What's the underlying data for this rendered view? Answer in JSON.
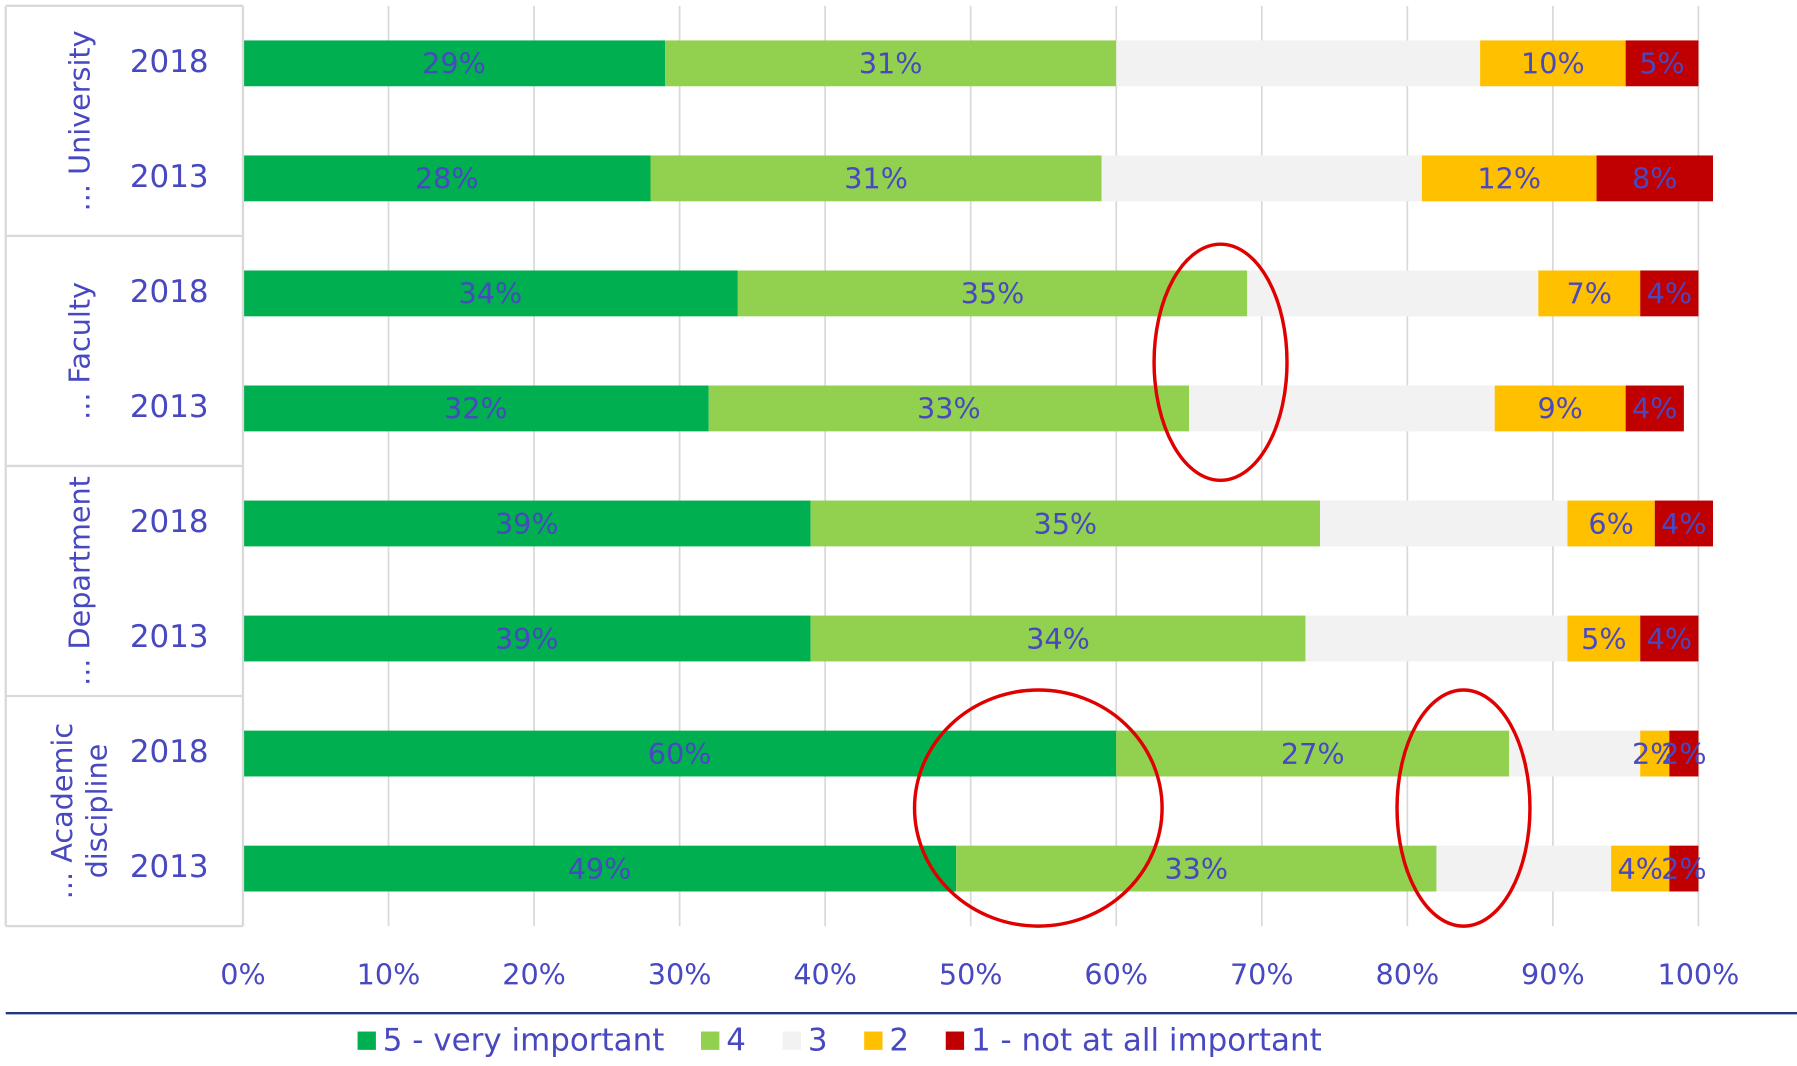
{
  "chart_data": {
    "type": "stacked-bar-horizontal",
    "groups": [
      {
        "name": "... University",
        "categories": [
          "2018",
          "2013"
        ]
      },
      {
        "name": "... Faculty",
        "categories": [
          "2018",
          "2013"
        ]
      },
      {
        "name": "... Department",
        "categories": [
          "2018",
          "2013"
        ]
      },
      {
        "name": "... Academic discipline",
        "categories": [
          "2018",
          "2013"
        ]
      }
    ],
    "series": [
      {
        "name": "5 - very important",
        "color": "#00b050",
        "values": [
          29,
          28,
          34,
          32,
          39,
          39,
          60,
          49
        ],
        "value_labels": [
          "29%",
          "28%",
          "34%",
          "32%",
          "39%",
          "39%",
          "60%",
          "49%"
        ]
      },
      {
        "name": "4",
        "color": "#92d050",
        "values": [
          31,
          31,
          35,
          33,
          35,
          34,
          27,
          33
        ],
        "value_labels": [
          "31%",
          "31%",
          "35%",
          "33%",
          "35%",
          "34%",
          "27%",
          "33%"
        ]
      },
      {
        "name": "3",
        "color": "#f2f2f2",
        "values": [
          25,
          22,
          20,
          21,
          17,
          18,
          9,
          12
        ]
      },
      {
        "name": "2",
        "color": "#ffc000",
        "values": [
          10,
          12,
          7,
          9,
          6,
          5,
          2,
          4
        ],
        "value_labels": [
          "10%",
          "12%",
          "7%",
          "9%",
          "6%",
          "5%",
          "2%",
          "4%"
        ]
      },
      {
        "name": "1 - not at all important",
        "color": "#c00000",
        "values": [
          5,
          8,
          4,
          4,
          4,
          4,
          2,
          2
        ],
        "value_labels": [
          "5%",
          "8%",
          "4%",
          "4%",
          "4%",
          "4%",
          "2%",
          "2%"
        ]
      }
    ],
    "xlim": [
      0,
      100
    ],
    "xticks": [
      {
        "value": 0,
        "label": "0%"
      },
      {
        "value": 10,
        "label": "10%"
      },
      {
        "value": 20,
        "label": "20%"
      },
      {
        "value": 30,
        "label": "30%"
      },
      {
        "value": 40,
        "label": "40%"
      },
      {
        "value": 50,
        "label": "50%"
      },
      {
        "value": 60,
        "label": "60%"
      },
      {
        "value": 70,
        "label": "70%"
      },
      {
        "value": 80,
        "label": "80%"
      },
      {
        "value": 90,
        "label": "90%"
      },
      {
        "value": 100,
        "label": "100%"
      }
    ],
    "grid": true,
    "legend": "bottom",
    "label_color": "#4848c0"
  }
}
